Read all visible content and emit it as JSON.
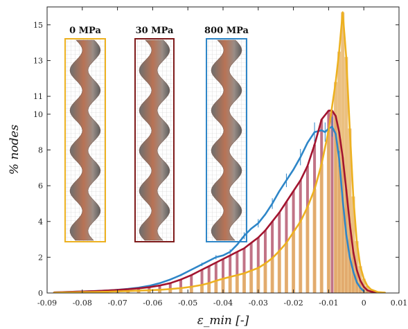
{
  "chart_data": {
    "type": "bar",
    "xlabel": "ε_min [-]",
    "ylabel": "% nodes",
    "xlim": [
      -0.09,
      0.01
    ],
    "ylim": [
      0,
      16
    ],
    "xticks": [
      -0.09,
      -0.08,
      -0.07,
      -0.06,
      -0.05,
      -0.04,
      -0.03,
      -0.02,
      -0.01,
      0,
      0.01
    ],
    "xtick_labels": [
      "-0.09",
      "-0.08",
      "-0.07",
      "-0.06",
      "-0.05",
      "-0.04",
      "-0.03",
      "-0.02",
      "-0.01",
      "0",
      "0.01"
    ],
    "yticks": [
      0,
      2,
      4,
      6,
      8,
      10,
      11,
      13,
      15
    ],
    "ytick_labels": [
      "0",
      "2",
      "4",
      "6",
      "8",
      "10",
      "11",
      "13",
      "15"
    ],
    "insets": [
      {
        "label": "0 MPa",
        "color": "#EDB120"
      },
      {
        "label": "30 MPa",
        "color": "#7E1A1A"
      },
      {
        "label": "800 MPa",
        "color": "#2E86C8"
      }
    ],
    "series": [
      {
        "color": "#EDB120",
        "bar_color": "#E8B56A",
        "x": [
          -0.088,
          -0.085,
          -0.082,
          -0.079,
          -0.076,
          -0.073,
          -0.07,
          -0.067,
          -0.064,
          -0.061,
          -0.058,
          -0.055,
          -0.052,
          -0.049,
          -0.046,
          -0.044,
          -0.042,
          -0.04,
          -0.038,
          -0.036,
          -0.034,
          -0.032,
          -0.03,
          -0.028,
          -0.026,
          -0.024,
          -0.022,
          -0.02,
          -0.018,
          -0.016,
          -0.014,
          -0.012,
          -0.01,
          -0.008,
          -0.007,
          -0.006,
          -0.005,
          -0.004,
          -0.003,
          -0.002,
          -0.001,
          0.0,
          0.001,
          0.002,
          0.004,
          0.006
        ],
        "values": [
          0.02,
          0.03,
          0.04,
          0.05,
          0.06,
          0.07,
          0.09,
          0.11,
          0.13,
          0.15,
          0.18,
          0.22,
          0.27,
          0.35,
          0.45,
          0.55,
          0.68,
          0.8,
          0.9,
          1.0,
          1.1,
          1.25,
          1.4,
          1.65,
          1.95,
          2.35,
          2.8,
          3.4,
          4.0,
          4.8,
          5.8,
          7.2,
          9.1,
          11.8,
          13.5,
          15.7,
          13.2,
          9.2,
          5.4,
          2.9,
          1.5,
          0.8,
          0.4,
          0.2,
          0.05,
          0.02
        ]
      },
      {
        "color": "#A2142F",
        "bar_color": "#B25068",
        "x": [
          -0.088,
          -0.085,
          -0.082,
          -0.079,
          -0.076,
          -0.073,
          -0.07,
          -0.067,
          -0.064,
          -0.061,
          -0.058,
          -0.055,
          -0.052,
          -0.049,
          -0.046,
          -0.044,
          -0.042,
          -0.04,
          -0.038,
          -0.036,
          -0.034,
          -0.032,
          -0.03,
          -0.028,
          -0.026,
          -0.024,
          -0.022,
          -0.02,
          -0.018,
          -0.016,
          -0.014,
          -0.012,
          -0.01,
          -0.009,
          -0.008,
          -0.007,
          -0.006,
          -0.005,
          -0.004,
          -0.003,
          -0.002,
          -0.001,
          0.0,
          0.001,
          0.002,
          0.004,
          0.006
        ],
        "values": [
          0.03,
          0.05,
          0.07,
          0.09,
          0.11,
          0.14,
          0.17,
          0.21,
          0.26,
          0.32,
          0.42,
          0.55,
          0.75,
          1.0,
          1.3,
          1.5,
          1.7,
          1.9,
          2.1,
          2.3,
          2.5,
          2.8,
          3.1,
          3.5,
          4.0,
          4.5,
          5.1,
          5.7,
          6.3,
          7.1,
          8.3,
          9.7,
          10.2,
          10.2,
          9.9,
          9.0,
          7.6,
          5.8,
          3.9,
          2.3,
          1.3,
          0.7,
          0.35,
          0.15,
          0.08,
          0.03,
          0.01
        ]
      },
      {
        "color": "#2E86C8",
        "x": [
          -0.088,
          -0.085,
          -0.082,
          -0.079,
          -0.076,
          -0.073,
          -0.07,
          -0.067,
          -0.064,
          -0.061,
          -0.058,
          -0.055,
          -0.052,
          -0.049,
          -0.046,
          -0.044,
          -0.042,
          -0.04,
          -0.038,
          -0.036,
          -0.034,
          -0.032,
          -0.03,
          -0.028,
          -0.026,
          -0.024,
          -0.022,
          -0.02,
          -0.018,
          -0.016,
          -0.014,
          -0.012,
          -0.011,
          -0.01,
          -0.009,
          -0.008,
          -0.007,
          -0.006,
          -0.005,
          -0.004,
          -0.003,
          -0.002,
          -0.001,
          0.0
        ],
        "values": [
          0.03,
          0.05,
          0.07,
          0.09,
          0.11,
          0.14,
          0.18,
          0.23,
          0.3,
          0.4,
          0.55,
          0.75,
          1.0,
          1.3,
          1.6,
          1.8,
          2.0,
          2.1,
          2.3,
          2.7,
          3.2,
          3.6,
          3.9,
          4.4,
          5.0,
          5.7,
          6.3,
          6.9,
          7.6,
          8.4,
          9.0,
          9.1,
          9.0,
          9.2,
          9.3,
          8.9,
          7.5,
          5.2,
          3.3,
          2.0,
          1.2,
          0.6,
          0.3,
          0.1
        ]
      }
    ]
  }
}
